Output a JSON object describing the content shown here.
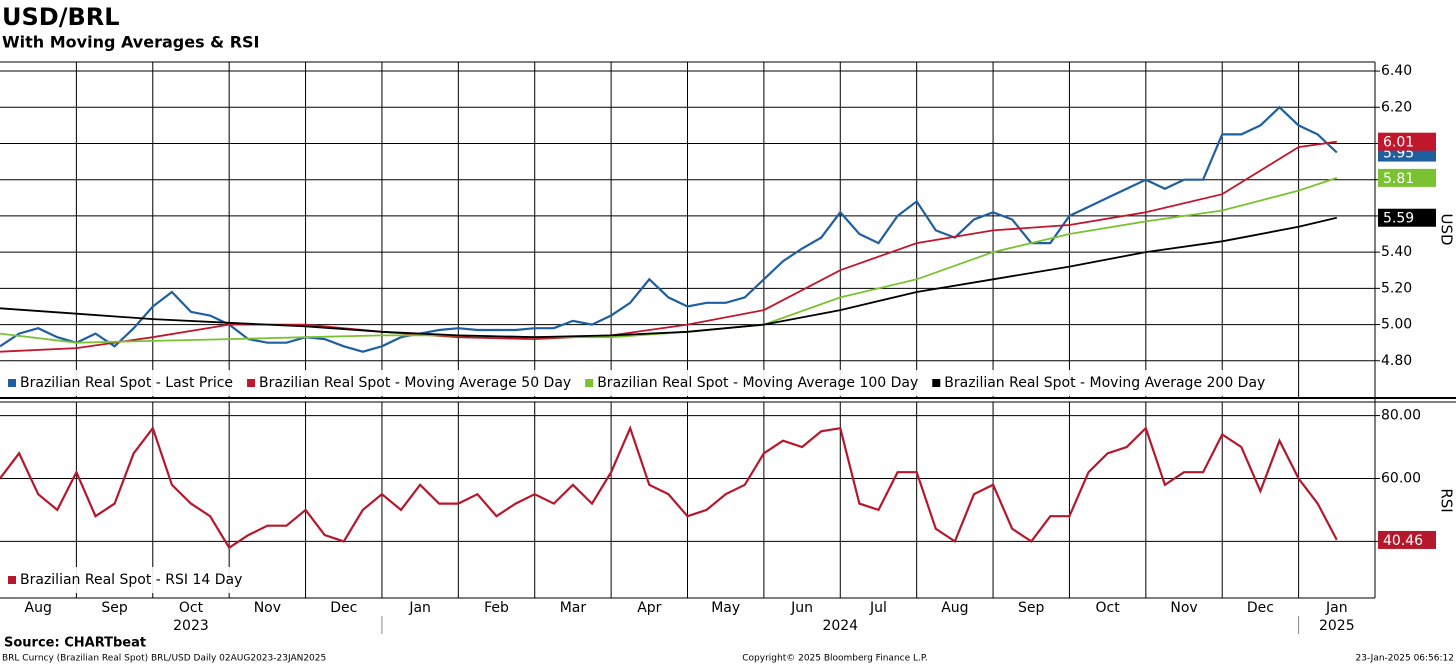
{
  "chart_data": [
    {
      "type": "line",
      "title": "USD/BRL",
      "subtitle": "With Moving Averages & RSI",
      "ylabel": "USD",
      "xlim": [
        0,
        18
      ],
      "ylim": [
        4.6,
        6.45
      ],
      "yticks": [
        {
          "value": 4.8,
          "label": "4.80"
        },
        {
          "value": 5.0,
          "label": "5.00"
        },
        {
          "value": 5.2,
          "label": "5.20"
        },
        {
          "value": 5.4,
          "label": "5.40"
        },
        {
          "value": 5.6,
          "label": "5.60"
        },
        {
          "value": 5.8,
          "label": "5.80"
        },
        {
          "value": 6.0,
          "label": "6.00"
        },
        {
          "value": 6.2,
          "label": "6.20"
        },
        {
          "value": 6.4,
          "label": "6.40"
        }
      ],
      "grid": true,
      "x": [
        0,
        0.25,
        0.5,
        0.75,
        1,
        1.25,
        1.5,
        1.75,
        2,
        2.25,
        2.5,
        2.75,
        3,
        3.25,
        3.5,
        3.75,
        4,
        4.25,
        4.5,
        4.75,
        5,
        5.25,
        5.5,
        5.75,
        6,
        6.25,
        6.5,
        6.75,
        7,
        7.25,
        7.5,
        7.75,
        8,
        8.25,
        8.5,
        8.75,
        9,
        9.25,
        9.5,
        9.75,
        10,
        10.25,
        10.5,
        10.75,
        11,
        11.25,
        11.5,
        11.75,
        12,
        12.25,
        12.5,
        12.75,
        13,
        13.25,
        13.5,
        13.75,
        14,
        14.25,
        14.5,
        14.75,
        15,
        15.25,
        15.5,
        15.75,
        16,
        16.25,
        16.5,
        16.75,
        17,
        17.25,
        17.5
      ],
      "series": [
        {
          "name": "Brazilian Real Spot - Last Price",
          "color": "#1f5fa0",
          "values": [
            4.88,
            4.95,
            4.98,
            4.93,
            4.9,
            4.95,
            4.88,
            4.98,
            5.1,
            5.18,
            5.07,
            5.05,
            5.0,
            4.92,
            4.9,
            4.9,
            4.93,
            4.92,
            4.88,
            4.85,
            4.88,
            4.93,
            4.95,
            4.97,
            4.98,
            4.97,
            4.97,
            4.97,
            4.98,
            4.98,
            5.02,
            5.0,
            5.05,
            5.12,
            5.25,
            5.15,
            5.1,
            5.12,
            5.12,
            5.15,
            5.25,
            5.35,
            5.42,
            5.48,
            5.62,
            5.5,
            5.45,
            5.6,
            5.68,
            5.52,
            5.48,
            5.58,
            5.62,
            5.58,
            5.45,
            5.45,
            5.6,
            5.65,
            5.7,
            5.75,
            5.8,
            5.75,
            5.8,
            5.8,
            6.05,
            6.05,
            6.1,
            6.2,
            6.1,
            6.05,
            5.95
          ]
        },
        {
          "name": "Brazilian Real Spot - Moving Average 50 Day",
          "color": "#c0172c",
          "x": [
            0,
            1,
            2,
            3,
            4,
            5,
            6,
            7,
            8,
            9,
            10,
            11,
            12,
            13,
            14,
            15,
            16,
            17,
            17.5
          ],
          "values": [
            4.85,
            4.87,
            4.93,
            5.0,
            5.0,
            4.96,
            4.93,
            4.92,
            4.94,
            5.0,
            5.08,
            5.3,
            5.45,
            5.52,
            5.55,
            5.62,
            5.72,
            5.98,
            6.01
          ]
        },
        {
          "name": "Brazilian Real Spot - Moving Average 100 Day",
          "color": "#7ac231",
          "x": [
            0,
            1,
            2,
            3,
            4,
            5,
            6,
            7,
            8,
            9,
            10,
            11,
            12,
            13,
            14,
            15,
            16,
            17,
            17.5
          ],
          "values": [
            4.95,
            4.9,
            4.91,
            4.92,
            4.93,
            4.94,
            4.94,
            4.93,
            4.93,
            4.96,
            5.0,
            5.15,
            5.25,
            5.4,
            5.5,
            5.57,
            5.63,
            5.74,
            5.81
          ]
        },
        {
          "name": "Brazilian Real Spot - Moving Average 200 Day",
          "color": "#000000",
          "x": [
            0,
            1,
            2,
            3,
            4,
            5,
            6,
            7,
            8,
            9,
            10,
            11,
            12,
            13,
            14,
            15,
            16,
            17,
            17.5
          ],
          "values": [
            5.09,
            5.06,
            5.03,
            5.01,
            4.99,
            4.96,
            4.94,
            4.93,
            4.94,
            4.96,
            5.0,
            5.08,
            5.18,
            5.25,
            5.32,
            5.4,
            5.46,
            5.54,
            5.59
          ]
        }
      ]
    },
    {
      "type": "line",
      "ylabel": "RSI",
      "xlim": [
        0,
        18
      ],
      "ylim": [
        22,
        84
      ],
      "yticks": [
        {
          "value": 40,
          "label": "40.00"
        },
        {
          "value": 60,
          "label": "60.00"
        },
        {
          "value": 80,
          "label": "80.00"
        }
      ],
      "grid": true,
      "x": [
        0,
        0.25,
        0.5,
        0.75,
        1,
        1.25,
        1.5,
        1.75,
        2,
        2.25,
        2.5,
        2.75,
        3,
        3.25,
        3.5,
        3.75,
        4,
        4.25,
        4.5,
        4.75,
        5,
        5.25,
        5.5,
        5.75,
        6,
        6.25,
        6.5,
        6.75,
        7,
        7.25,
        7.5,
        7.75,
        8,
        8.25,
        8.5,
        8.75,
        9,
        9.25,
        9.5,
        9.75,
        10,
        10.25,
        10.5,
        10.75,
        11,
        11.25,
        11.5,
        11.75,
        12,
        12.25,
        12.5,
        12.75,
        13,
        13.25,
        13.5,
        13.75,
        14,
        14.25,
        14.5,
        14.75,
        15,
        15.25,
        15.5,
        15.75,
        16,
        16.25,
        16.5,
        16.75,
        17,
        17.25,
        17.5
      ],
      "series": [
        {
          "name": "Brazilian Real Spot - RSI 14 Day",
          "color": "#b5172b",
          "values": [
            60,
            68,
            55,
            50,
            62,
            48,
            52,
            68,
            76,
            58,
            52,
            48,
            38,
            42,
            45,
            45,
            50,
            42,
            40,
            50,
            55,
            50,
            58,
            52,
            52,
            55,
            48,
            52,
            55,
            52,
            58,
            52,
            62,
            76,
            58,
            55,
            48,
            50,
            55,
            58,
            68,
            72,
            70,
            75,
            76,
            52,
            50,
            62,
            62,
            44,
            40,
            55,
            58,
            44,
            40,
            48,
            48,
            62,
            68,
            70,
            76,
            58,
            62,
            62,
            74,
            70,
            56,
            72,
            60,
            52,
            40.46
          ]
        }
      ],
      "xticks": [
        {
          "value": 0.5,
          "label": "Aug"
        },
        {
          "value": 1.5,
          "label": "Sep"
        },
        {
          "value": 2.5,
          "label": "Oct"
        },
        {
          "value": 3.5,
          "label": "Nov"
        },
        {
          "value": 4.5,
          "label": "Dec"
        },
        {
          "value": 5.5,
          "label": "Jan"
        },
        {
          "value": 6.5,
          "label": "Feb"
        },
        {
          "value": 7.5,
          "label": "Mar"
        },
        {
          "value": 8.5,
          "label": "Apr"
        },
        {
          "value": 9.5,
          "label": "May"
        },
        {
          "value": 10.5,
          "label": "Jun"
        },
        {
          "value": 11.5,
          "label": "Jul"
        },
        {
          "value": 12.5,
          "label": "Aug"
        },
        {
          "value": 13.5,
          "label": "Sep"
        },
        {
          "value": 14.5,
          "label": "Oct"
        },
        {
          "value": 15.5,
          "label": "Nov"
        },
        {
          "value": 16.5,
          "label": "Dec"
        },
        {
          "value": 17.5,
          "label": "Jan"
        }
      ],
      "xgrid": [
        1,
        2,
        3,
        4,
        5,
        6,
        7,
        8,
        9,
        10,
        11,
        12,
        13,
        14,
        15,
        16,
        17
      ],
      "x_groups": [
        {
          "label": "2023",
          "range": [
            0,
            5
          ]
        },
        {
          "label": "2024",
          "range": [
            5,
            17
          ]
        },
        {
          "label": "2025",
          "range": [
            17,
            18
          ]
        }
      ]
    }
  ],
  "source": "Source: CHARTbeat",
  "footer": {
    "left": "BRL Curncy (Brazilian Real Spot) BRL/USD  Daily 02AUG2023-23JAN2025",
    "center": "Copyright© 2025 Bloomberg Finance L.P.",
    "right": "23-Jan-2025 06:56:12"
  }
}
